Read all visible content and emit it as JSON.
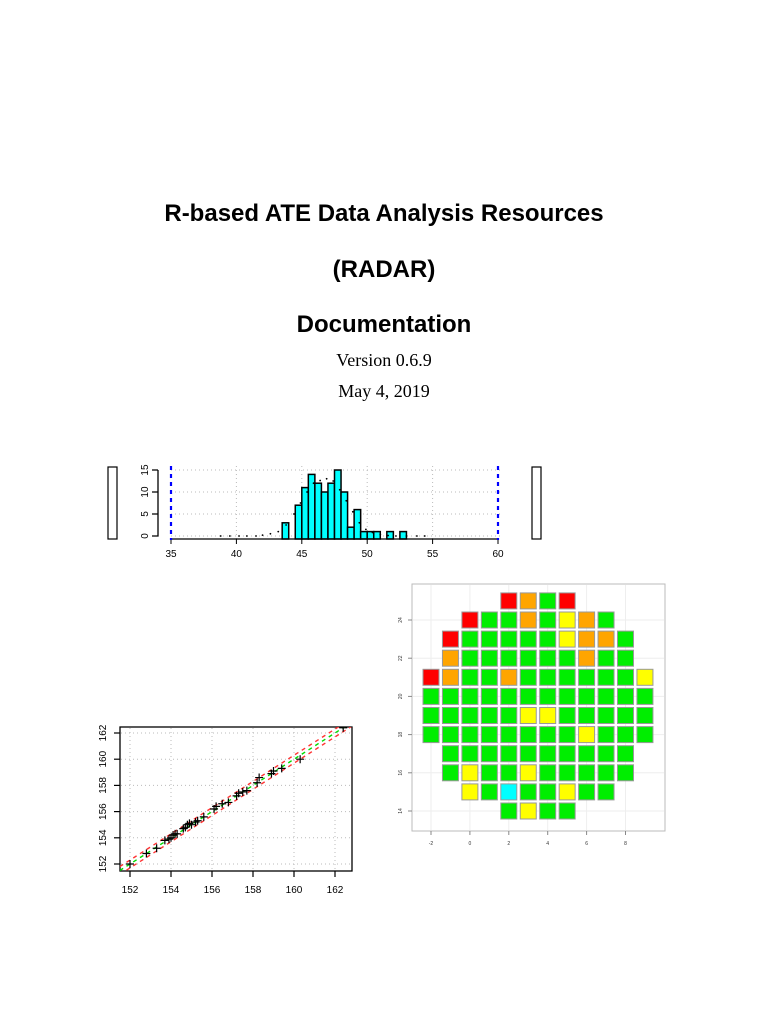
{
  "document": {
    "title_line1": "R-based ATE Data Analysis Resources",
    "title_line2": "(RADAR)",
    "title_line3": "Documentation",
    "version": "Version 0.6.9",
    "date": "May 4, 2019"
  },
  "chart_data": [
    {
      "type": "bar",
      "title": "",
      "xlabel": "",
      "ylabel": "",
      "xlim": [
        35,
        60
      ],
      "ylim": [
        0,
        15
      ],
      "x_ticks": [
        "35",
        "40",
        "45",
        "50",
        "55",
        "60"
      ],
      "y_ticks": [
        "0",
        "5",
        "10",
        "15"
      ],
      "bin_width": 0.5,
      "bin_starts": [
        43.5,
        44.0,
        44.5,
        45.0,
        45.5,
        46.0,
        46.5,
        47.0,
        47.5,
        48.0,
        48.5,
        49.0,
        49.5,
        50.0,
        50.5,
        51.0,
        51.5,
        52.0,
        52.5
      ],
      "values": [
        3,
        0,
        7,
        11,
        14,
        12,
        10,
        12,
        15,
        10,
        2,
        6,
        1,
        1,
        1,
        0,
        1,
        0,
        1
      ],
      "limit_lines": [
        35,
        60
      ],
      "limit_line_color": "#0000ff",
      "bar_color": "#00ffff",
      "grid": true
    },
    {
      "type": "scatter",
      "title": "",
      "xlabel": "",
      "ylabel": "",
      "xlim": [
        151.5,
        162.8
      ],
      "ylim": [
        151.5,
        162.8
      ],
      "x_ticks": [
        "152",
        "154",
        "156",
        "158",
        "160",
        "162"
      ],
      "y_ticks": [
        "152",
        "154",
        "156",
        "158",
        "160",
        "162"
      ],
      "x": [
        152.0,
        152.8,
        153.3,
        153.7,
        153.9,
        154.0,
        154.1,
        154.2,
        154.3,
        154.6,
        154.7,
        154.8,
        154.9,
        155.0,
        155.2,
        155.3,
        155.6,
        156.1,
        156.2,
        156.5,
        156.8,
        157.2,
        157.3,
        157.5,
        157.7,
        158.2,
        158.3,
        158.9,
        159.0,
        159.4,
        160.3,
        162.4
      ],
      "y": [
        152.0,
        152.8,
        153.2,
        153.8,
        153.9,
        154.0,
        154.2,
        154.3,
        154.3,
        154.7,
        154.8,
        155.0,
        155.1,
        155.0,
        155.2,
        155.3,
        155.6,
        156.2,
        156.4,
        156.6,
        156.7,
        157.2,
        157.4,
        157.5,
        157.6,
        158.2,
        158.6,
        158.9,
        159.1,
        159.3,
        160.0,
        162.4
      ],
      "marker": "+",
      "reference_line": {
        "color": "#00cc00",
        "style": "dashed"
      },
      "limit_lines": {
        "color": "#ff3333",
        "style": "dashed",
        "offset": 0.3
      },
      "grid": true
    },
    {
      "type": "heatmap",
      "title": "",
      "x_ticks": [
        "-2",
        "0",
        "2",
        "4",
        "6",
        "8"
      ],
      "y_ticks": [
        "14",
        "16",
        "18",
        "20",
        "22",
        "24"
      ],
      "x_range": [
        -2,
        9
      ],
      "y_range": [
        14,
        25
      ],
      "legend": {
        "G": "#00ee00",
        "Y": "#ffff00",
        "O": "#ffa500",
        "R": "#ff0000",
        "C": "#00ffff"
      },
      "rows": [
        {
          "y": 25,
          "start_x": 2,
          "bins": [
            "R",
            "O",
            "G",
            "R"
          ]
        },
        {
          "y": 24,
          "start_x": 0,
          "bins": [
            "R",
            "G",
            "G",
            "O",
            "G",
            "Y",
            "O",
            "G"
          ]
        },
        {
          "y": 23,
          "start_x": -1,
          "bins": [
            "R",
            "G",
            "G",
            "G",
            "G",
            "G",
            "Y",
            "O",
            "O",
            "G"
          ]
        },
        {
          "y": 22,
          "start_x": -1,
          "bins": [
            "O",
            "G",
            "G",
            "G",
            "G",
            "G",
            "G",
            "O",
            "G",
            "G"
          ]
        },
        {
          "y": 21,
          "start_x": -2,
          "bins": [
            "R",
            "O",
            "G",
            "G",
            "O",
            "G",
            "G",
            "G",
            "G",
            "G",
            "G",
            "Y"
          ]
        },
        {
          "y": 20,
          "start_x": -2,
          "bins": [
            "G",
            "G",
            "G",
            "G",
            "G",
            "G",
            "G",
            "G",
            "G",
            "G",
            "G",
            "G"
          ]
        },
        {
          "y": 19,
          "start_x": -2,
          "bins": [
            "G",
            "G",
            "G",
            "G",
            "G",
            "Y",
            "Y",
            "G",
            "G",
            "G",
            "G",
            "G"
          ]
        },
        {
          "y": 18,
          "start_x": -2,
          "bins": [
            "G",
            "G",
            "G",
            "G",
            "G",
            "G",
            "G",
            "G",
            "Y",
            "G",
            "G",
            "G"
          ]
        },
        {
          "y": 17,
          "start_x": -1,
          "bins": [
            "G",
            "G",
            "G",
            "G",
            "G",
            "G",
            "G",
            "G",
            "G",
            "G"
          ]
        },
        {
          "y": 16,
          "start_x": -1,
          "bins": [
            "G",
            "Y",
            "G",
            "G",
            "Y",
            "G",
            "G",
            "G",
            "G",
            "G"
          ]
        },
        {
          "y": 15,
          "start_x": 0,
          "bins": [
            "Y",
            "G",
            "C",
            "G",
            "G",
            "Y",
            "G",
            "G"
          ]
        },
        {
          "y": 14,
          "start_x": 2,
          "bins": [
            "G",
            "Y",
            "G",
            "G"
          ]
        }
      ]
    }
  ]
}
